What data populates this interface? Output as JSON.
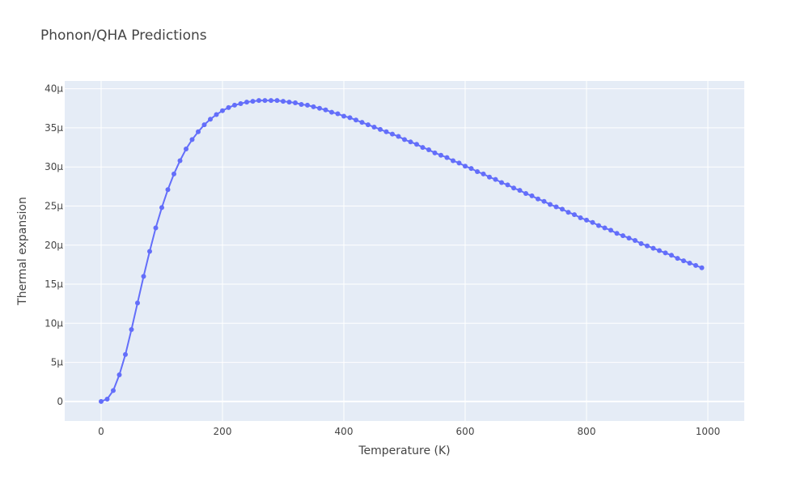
{
  "chart_data": {
    "type": "line",
    "title": "Phonon/QHA Predictions",
    "xlabel": "Temperature (K)",
    "ylabel": "Thermal expansion",
    "xlim": [
      -60,
      1060
    ],
    "ylim": [
      -2.5,
      41
    ],
    "x_ticks": [
      0,
      200,
      400,
      600,
      800,
      1000
    ],
    "x_tick_labels": [
      "0",
      "200",
      "400",
      "600",
      "800",
      "1000"
    ],
    "y_ticks": [
      0,
      5,
      10,
      15,
      20,
      25,
      30,
      35,
      40
    ],
    "y_tick_labels": [
      "0",
      "5μ",
      "10μ",
      "15μ",
      "20μ",
      "25μ",
      "30μ",
      "35μ",
      "40μ"
    ],
    "grid": true,
    "legend": "none",
    "series": [
      {
        "color": "#636efa",
        "mode": "lines+markers",
        "x": [
          0,
          10,
          20,
          30,
          40,
          50,
          60,
          70,
          80,
          90,
          100,
          110,
          120,
          130,
          140,
          150,
          160,
          170,
          180,
          190,
          200,
          210,
          220,
          230,
          240,
          250,
          260,
          270,
          280,
          290,
          300,
          310,
          320,
          330,
          340,
          350,
          360,
          370,
          380,
          390,
          400,
          410,
          420,
          430,
          440,
          450,
          460,
          470,
          480,
          490,
          500,
          510,
          520,
          530,
          540,
          550,
          560,
          570,
          580,
          590,
          600,
          610,
          620,
          630,
          640,
          650,
          660,
          670,
          680,
          690,
          700,
          710,
          720,
          730,
          740,
          750,
          760,
          770,
          780,
          790,
          800,
          810,
          820,
          830,
          840,
          850,
          860,
          870,
          880,
          890,
          900,
          910,
          920,
          930,
          940,
          950,
          960,
          970,
          980,
          990
        ],
        "y": [
          0,
          0.3,
          1.4,
          3.4,
          6.0,
          9.2,
          12.6,
          16.0,
          19.2,
          22.2,
          24.8,
          27.1,
          29.1,
          30.8,
          32.3,
          33.5,
          34.5,
          35.4,
          36.1,
          36.7,
          37.2,
          37.6,
          37.9,
          38.1,
          38.3,
          38.4,
          38.5,
          38.5,
          38.5,
          38.5,
          38.4,
          38.3,
          38.2,
          38.0,
          37.9,
          37.7,
          37.5,
          37.3,
          37.0,
          36.8,
          36.5,
          36.3,
          36.0,
          35.7,
          35.4,
          35.1,
          34.8,
          34.5,
          34.2,
          33.9,
          33.5,
          33.2,
          32.9,
          32.5,
          32.2,
          31.8,
          31.5,
          31.2,
          30.8,
          30.5,
          30.1,
          29.8,
          29.4,
          29.1,
          28.7,
          28.4,
          28.0,
          27.7,
          27.3,
          27.0,
          26.6,
          26.3,
          25.9,
          25.6,
          25.2,
          24.9,
          24.6,
          24.2,
          23.9,
          23.5,
          23.2,
          22.9,
          22.5,
          22.2,
          21.9,
          21.5,
          21.2,
          20.9,
          20.6,
          20.2,
          19.9,
          19.6,
          19.3,
          19.0,
          18.7,
          18.3,
          18.0,
          17.7,
          17.4,
          17.1
        ]
      }
    ]
  }
}
